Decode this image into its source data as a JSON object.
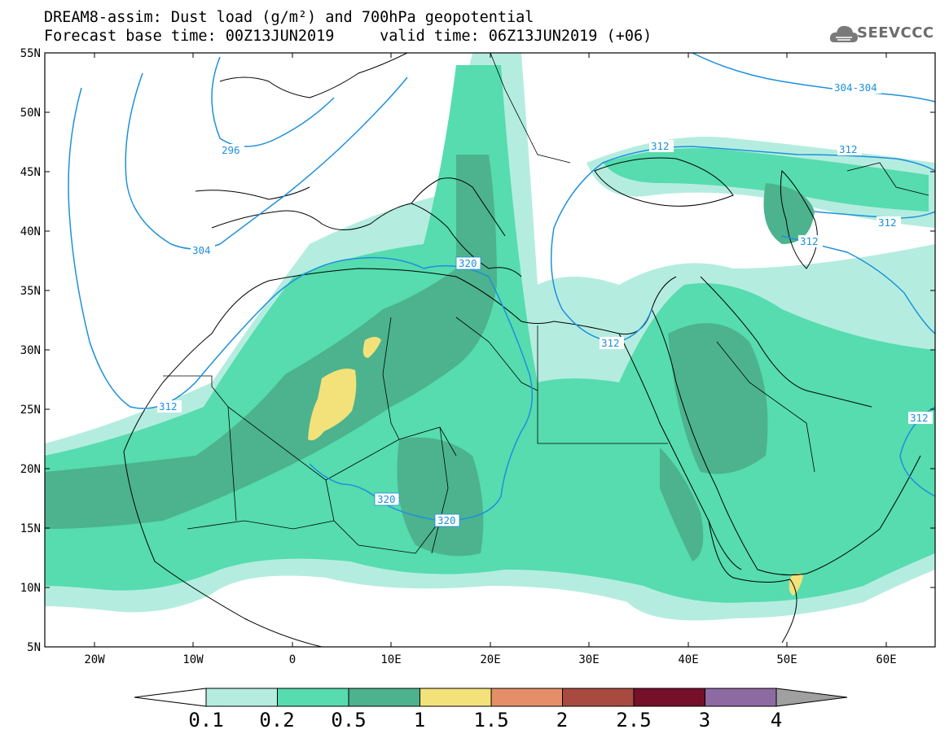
{
  "header": {
    "title_line1": "DREAM8-assim: Dust load (g/m²) and 700hPa geopotential",
    "title_line2": "Forecast base time: 00Z13JUN2019     valid time: 06Z13JUN2019 (+06)",
    "logo_text": "SEEVCCC",
    "logo_icon": "cloud-logo-icon"
  },
  "map": {
    "lat_labels": [
      "55N",
      "50N",
      "45N",
      "40N",
      "35N",
      "30N",
      "25N",
      "20N",
      "15N",
      "10N",
      "5N"
    ],
    "lon_labels": [
      "20W",
      "10W",
      "0",
      "10E",
      "20E",
      "30E",
      "40E",
      "50E",
      "60E"
    ],
    "lat_range": [
      5,
      55
    ],
    "lon_range": [
      -25,
      65
    ],
    "contour_labels": [
      "296",
      "304",
      "304-304",
      "312",
      "312",
      "312",
      "312",
      "312",
      "312",
      "312",
      "320",
      "320",
      "320"
    ],
    "contour_color": "#1e90dc"
  },
  "colorbar": {
    "labels": [
      "0.1",
      "0.2",
      "0.5",
      "1",
      "1.5",
      "2",
      "2.5",
      "3",
      "4"
    ],
    "colors": [
      "#ffffff",
      "#b4ede0",
      "#56dcae",
      "#4cb38e",
      "#f3e27a",
      "#e48f68",
      "#a84a3f",
      "#750f2a",
      "#8e6aa3",
      "#a0a0a0"
    ]
  }
}
